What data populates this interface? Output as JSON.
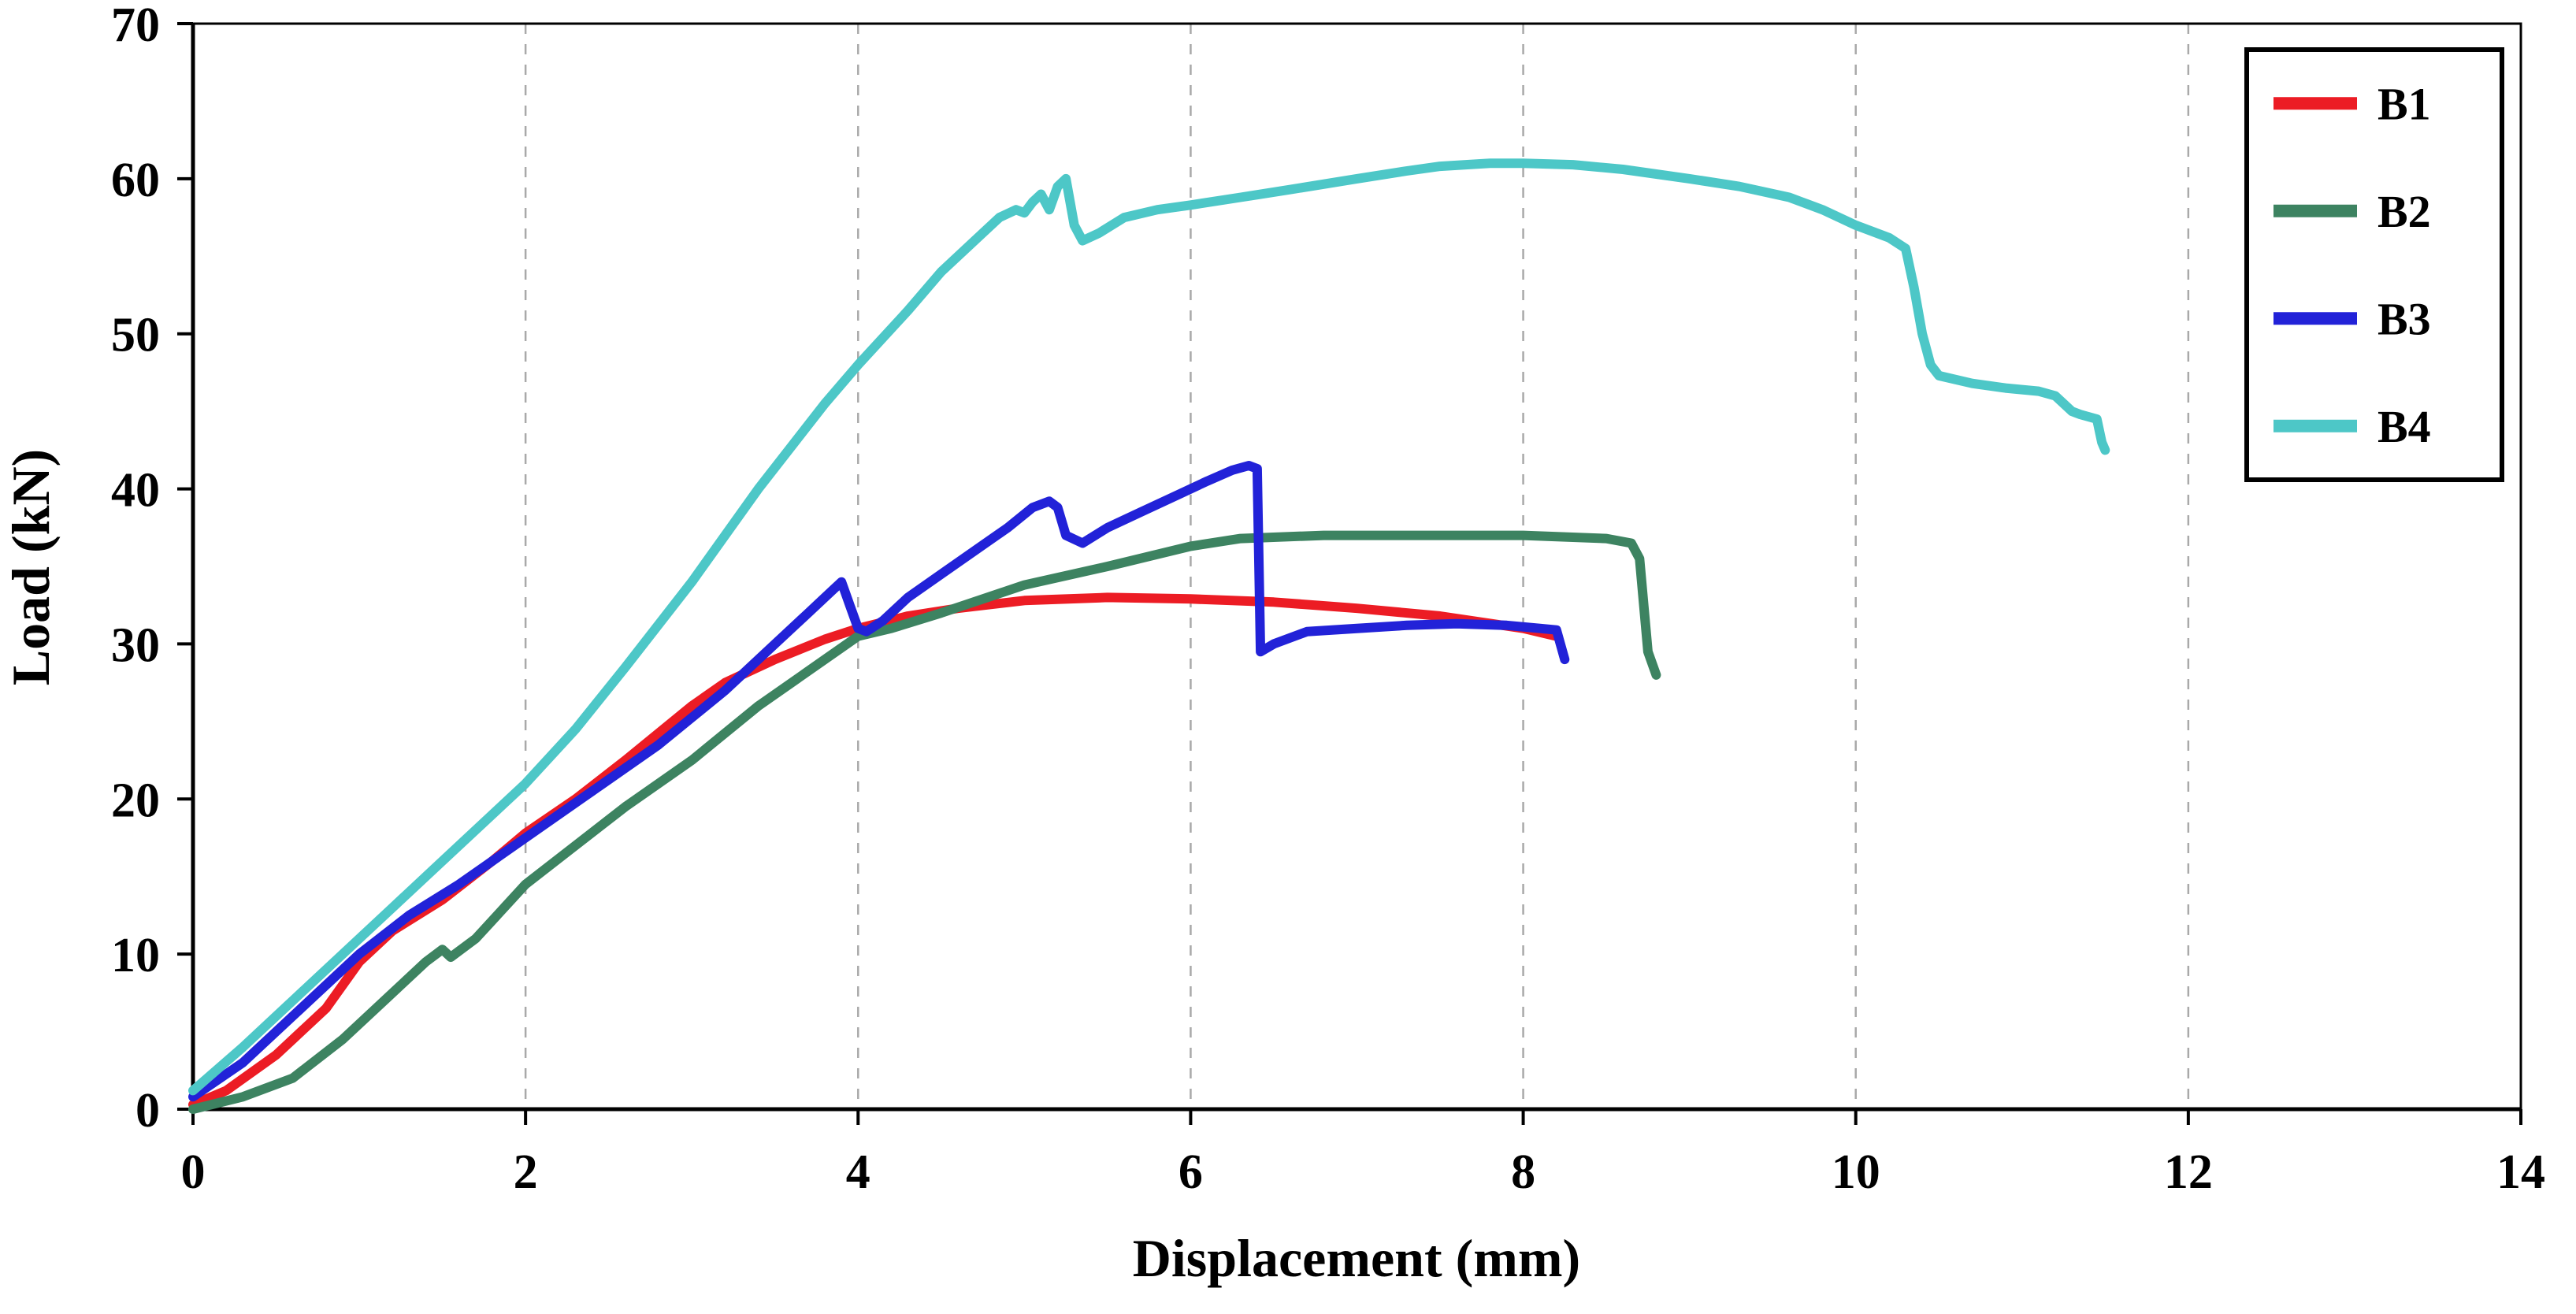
{
  "chart_data": {
    "type": "line",
    "title": "",
    "xlabel": "Displacement (mm)",
    "ylabel": "Load (kN)",
    "xlim": [
      0,
      14
    ],
    "ylim": [
      0,
      70
    ],
    "xticks": [
      0,
      2,
      4,
      6,
      8,
      10,
      12,
      14
    ],
    "yticks": [
      0,
      10,
      20,
      30,
      40,
      50,
      60,
      70
    ],
    "grid": "vertical-dashed",
    "grid_color": "#a9a9a9",
    "legend_position": "top-right",
    "series": [
      {
        "name": "B1",
        "color": "#ec1c24",
        "points": [
          [
            0,
            0.3
          ],
          [
            0.2,
            1.2
          ],
          [
            0.5,
            3.5
          ],
          [
            0.8,
            6.5
          ],
          [
            1.0,
            9.5
          ],
          [
            1.2,
            11.5
          ],
          [
            1.5,
            13.5
          ],
          [
            1.8,
            16
          ],
          [
            2.0,
            17.8
          ],
          [
            2.3,
            20
          ],
          [
            2.6,
            22.5
          ],
          [
            3.0,
            26
          ],
          [
            3.2,
            27.5
          ],
          [
            3.5,
            29
          ],
          [
            3.8,
            30.3
          ],
          [
            4.0,
            31
          ],
          [
            4.3,
            31.8
          ],
          [
            4.6,
            32.3
          ],
          [
            5.0,
            32.8
          ],
          [
            5.5,
            33
          ],
          [
            6.0,
            32.9
          ],
          [
            6.5,
            32.7
          ],
          [
            7.0,
            32.3
          ],
          [
            7.5,
            31.8
          ],
          [
            8.0,
            31
          ],
          [
            8.2,
            30.5
          ]
        ]
      },
      {
        "name": "B2",
        "color": "#3d8361",
        "points": [
          [
            0,
            0
          ],
          [
            0.3,
            0.8
          ],
          [
            0.6,
            2
          ],
          [
            0.9,
            4.5
          ],
          [
            1.2,
            7.5
          ],
          [
            1.4,
            9.5
          ],
          [
            1.5,
            10.3
          ],
          [
            1.55,
            9.8
          ],
          [
            1.7,
            11
          ],
          [
            2.0,
            14.5
          ],
          [
            2.3,
            17
          ],
          [
            2.6,
            19.5
          ],
          [
            3.0,
            22.5
          ],
          [
            3.4,
            26
          ],
          [
            3.8,
            29
          ],
          [
            4.0,
            30.5
          ],
          [
            4.2,
            31
          ],
          [
            4.5,
            32
          ],
          [
            5.0,
            33.8
          ],
          [
            5.5,
            35
          ],
          [
            6.0,
            36.3
          ],
          [
            6.3,
            36.8
          ],
          [
            6.8,
            37
          ],
          [
            7.5,
            37
          ],
          [
            8.0,
            37
          ],
          [
            8.5,
            36.8
          ],
          [
            8.65,
            36.5
          ],
          [
            8.7,
            35.5
          ],
          [
            8.75,
            29.5
          ],
          [
            8.8,
            28
          ]
        ]
      },
      {
        "name": "B3",
        "color": "#2222d8",
        "points": [
          [
            0,
            0.8
          ],
          [
            0.3,
            3
          ],
          [
            0.6,
            6
          ],
          [
            0.9,
            9
          ],
          [
            1.0,
            10
          ],
          [
            1.3,
            12.5
          ],
          [
            1.6,
            14.5
          ],
          [
            2.0,
            17.5
          ],
          [
            2.4,
            20.5
          ],
          [
            2.8,
            23.5
          ],
          [
            3.2,
            27
          ],
          [
            3.5,
            30
          ],
          [
            3.7,
            32
          ],
          [
            3.85,
            33.5
          ],
          [
            3.9,
            34
          ],
          [
            3.95,
            32.5
          ],
          [
            4.0,
            31
          ],
          [
            4.05,
            30.8
          ],
          [
            4.15,
            31.5
          ],
          [
            4.3,
            33
          ],
          [
            4.5,
            34.5
          ],
          [
            4.7,
            36
          ],
          [
            4.9,
            37.5
          ],
          [
            5.05,
            38.8
          ],
          [
            5.15,
            39.2
          ],
          [
            5.2,
            38.8
          ],
          [
            5.25,
            37
          ],
          [
            5.35,
            36.5
          ],
          [
            5.5,
            37.5
          ],
          [
            5.7,
            38.5
          ],
          [
            5.9,
            39.5
          ],
          [
            6.1,
            40.5
          ],
          [
            6.25,
            41.2
          ],
          [
            6.35,
            41.5
          ],
          [
            6.4,
            41.3
          ],
          [
            6.42,
            29.5
          ],
          [
            6.5,
            30
          ],
          [
            6.7,
            30.8
          ],
          [
            7.0,
            31
          ],
          [
            7.3,
            31.2
          ],
          [
            7.6,
            31.3
          ],
          [
            7.9,
            31.2
          ],
          [
            8.1,
            31
          ],
          [
            8.2,
            30.9
          ],
          [
            8.25,
            29
          ]
        ]
      },
      {
        "name": "B4",
        "color": "#4dc7c7",
        "points": [
          [
            0,
            1.2
          ],
          [
            0.3,
            4
          ],
          [
            0.6,
            7
          ],
          [
            0.9,
            10
          ],
          [
            1.2,
            13
          ],
          [
            1.5,
            16
          ],
          [
            1.8,
            19
          ],
          [
            2.0,
            21
          ],
          [
            2.3,
            24.5
          ],
          [
            2.6,
            28.5
          ],
          [
            3.0,
            34
          ],
          [
            3.4,
            40
          ],
          [
            3.8,
            45.5
          ],
          [
            4.0,
            48
          ],
          [
            4.3,
            51.5
          ],
          [
            4.5,
            54
          ],
          [
            4.7,
            56
          ],
          [
            4.85,
            57.5
          ],
          [
            4.95,
            58
          ],
          [
            5.0,
            57.8
          ],
          [
            5.05,
            58.5
          ],
          [
            5.1,
            59
          ],
          [
            5.15,
            58
          ],
          [
            5.2,
            59.5
          ],
          [
            5.25,
            60
          ],
          [
            5.3,
            57
          ],
          [
            5.35,
            56
          ],
          [
            5.45,
            56.5
          ],
          [
            5.6,
            57.5
          ],
          [
            5.8,
            58
          ],
          [
            6.0,
            58.3
          ],
          [
            6.3,
            58.8
          ],
          [
            6.6,
            59.3
          ],
          [
            7.0,
            60
          ],
          [
            7.3,
            60.5
          ],
          [
            7.5,
            60.8
          ],
          [
            7.8,
            61
          ],
          [
            8.0,
            61
          ],
          [
            8.3,
            60.9
          ],
          [
            8.6,
            60.6
          ],
          [
            9.0,
            60
          ],
          [
            9.3,
            59.5
          ],
          [
            9.6,
            58.8
          ],
          [
            9.8,
            58
          ],
          [
            10.0,
            57
          ],
          [
            10.2,
            56.2
          ],
          [
            10.3,
            55.5
          ],
          [
            10.35,
            53
          ],
          [
            10.4,
            50
          ],
          [
            10.45,
            48
          ],
          [
            10.5,
            47.3
          ],
          [
            10.7,
            46.8
          ],
          [
            10.9,
            46.5
          ],
          [
            11.1,
            46.3
          ],
          [
            11.2,
            46
          ],
          [
            11.3,
            45
          ],
          [
            11.35,
            44.8
          ],
          [
            11.45,
            44.5
          ],
          [
            11.48,
            43
          ],
          [
            11.5,
            42.5
          ]
        ]
      }
    ]
  }
}
